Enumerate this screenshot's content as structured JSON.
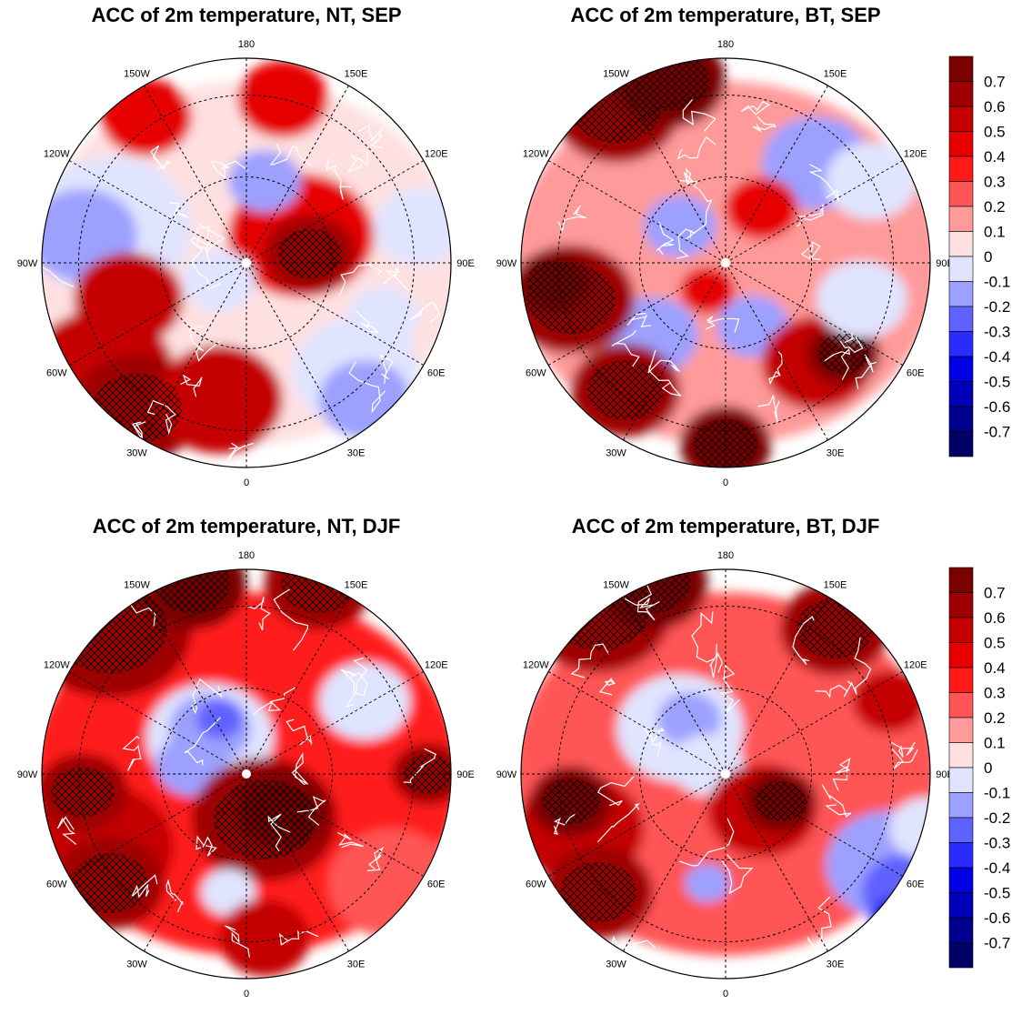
{
  "panels": [
    {
      "title": "ACC of 2m temperature, NT, SEP",
      "season": "SEP",
      "model": "NT"
    },
    {
      "title": "ACC of 2m temperature, BT, SEP",
      "season": "SEP",
      "model": "BT"
    },
    {
      "title": "ACC of 2m temperature, NT, DJF",
      "season": "DJF",
      "model": "NT"
    },
    {
      "title": "ACC of 2m temperature, BT, DJF",
      "season": "DJF",
      "model": "BT"
    }
  ],
  "longitude_labels": [
    "180",
    "150E",
    "120E",
    "90E",
    "60E",
    "30E",
    "0",
    "30W",
    "60W",
    "90W",
    "120W",
    "150W"
  ],
  "colorbar": {
    "tick_labels": [
      "0.7",
      "0.6",
      "0.5",
      "0.4",
      "0.3",
      "0.2",
      "0.1",
      "0",
      "-0.1",
      "-0.2",
      "-0.3",
      "-0.4",
      "-0.5",
      "-0.6",
      "-0.7"
    ],
    "colors": [
      "#7a0000",
      "#9e0000",
      "#c40000",
      "#e60000",
      "#ff1a1a",
      "#ff5555",
      "#ff9a9a",
      "#ffe0e0",
      "#e0e4ff",
      "#9ca0ff",
      "#5e62ff",
      "#2b2bff",
      "#0000e6",
      "#0000b8",
      "#00008e",
      "#000066"
    ]
  }
}
